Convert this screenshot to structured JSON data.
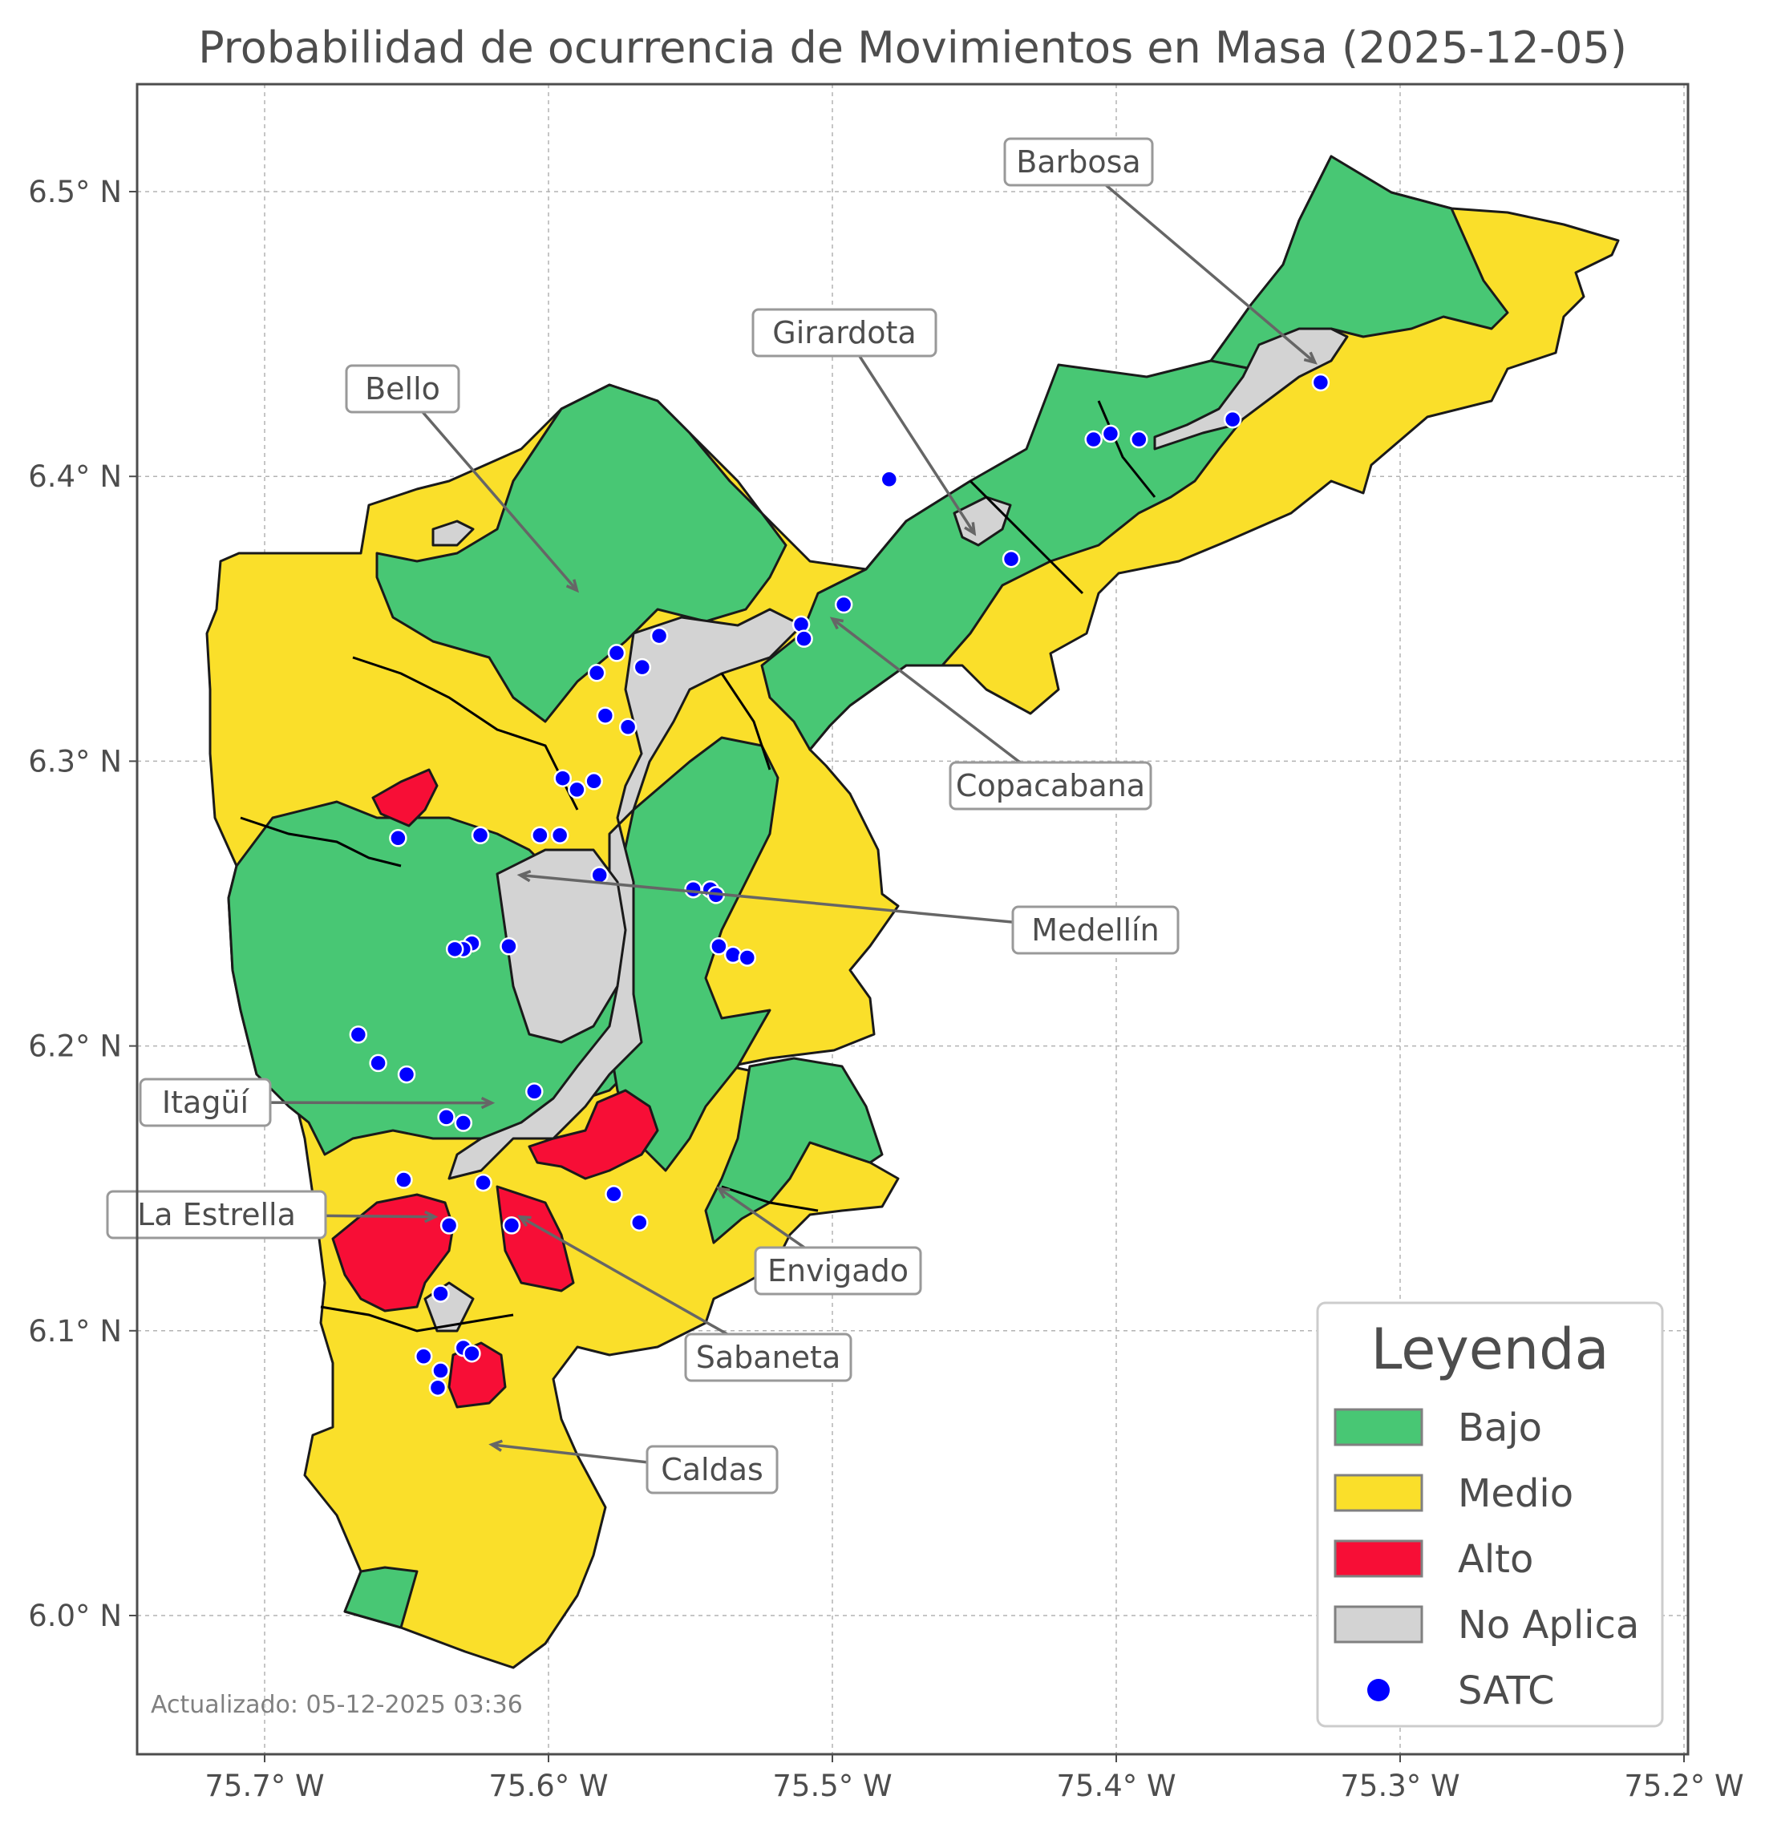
{
  "title": "Probabilidad de ocurrencia de Movimientos en Masa (2025-12-05)",
  "axes": {
    "lat_ticks": [
      "6.5° N",
      "6.4° N",
      "6.3° N",
      "6.2° N",
      "6.1° N",
      "6.0° N"
    ],
    "lon_ticks": [
      "75.7° W",
      "75.6° W",
      "75.5° W",
      "75.4° W",
      "75.3° W",
      "75.2° W"
    ],
    "grid": true
  },
  "municipalities": [
    {
      "name": "Barbosa",
      "lon": -75.33,
      "lat": 6.44
    },
    {
      "name": "Girardota",
      "lon": -75.45,
      "lat": 6.38
    },
    {
      "name": "Bello",
      "lon": -75.59,
      "lat": 6.36
    },
    {
      "name": "Copacabana",
      "lon": -75.5,
      "lat": 6.35
    },
    {
      "name": "Medellín",
      "lon": -75.61,
      "lat": 6.26
    },
    {
      "name": "Itagüí",
      "lon": -75.62,
      "lat": 6.18
    },
    {
      "name": "La Estrella",
      "lon": -75.64,
      "lat": 6.14
    },
    {
      "name": "Envigado",
      "lon": -75.54,
      "lat": 6.15
    },
    {
      "name": "Sabaneta",
      "lon": -75.61,
      "lat": 6.14
    },
    {
      "name": "Caldas",
      "lon": -75.62,
      "lat": 6.06
    }
  ],
  "legend": {
    "title": "Leyenda",
    "placement": "bottom-right",
    "items": [
      {
        "label": "Bajo",
        "color": "#48c774",
        "kind": "patch"
      },
      {
        "label": "Medio",
        "color": "#fadf2a",
        "kind": "patch"
      },
      {
        "label": "Alto",
        "color": "#f70e36",
        "kind": "patch"
      },
      {
        "label": "No Aplica",
        "color": "#d3d3d3",
        "kind": "patch"
      },
      {
        "label": "SATC",
        "color": "#0000ff",
        "kind": "point"
      }
    ]
  },
  "satc_stations": [
    {
      "lon": -75.328,
      "lat": 6.433
    },
    {
      "lon": -75.359,
      "lat": 6.42
    },
    {
      "lon": -75.392,
      "lat": 6.413
    },
    {
      "lon": -75.402,
      "lat": 6.415
    },
    {
      "lon": -75.408,
      "lat": 6.413
    },
    {
      "lon": -75.48,
      "lat": 6.399
    },
    {
      "lon": -75.437,
      "lat": 6.371
    },
    {
      "lon": -75.496,
      "lat": 6.355
    },
    {
      "lon": -75.511,
      "lat": 6.348
    },
    {
      "lon": -75.51,
      "lat": 6.343
    },
    {
      "lon": -75.561,
      "lat": 6.344
    },
    {
      "lon": -75.576,
      "lat": 6.338
    },
    {
      "lon": -75.567,
      "lat": 6.333
    },
    {
      "lon": -75.583,
      "lat": 6.331
    },
    {
      "lon": -75.58,
      "lat": 6.316
    },
    {
      "lon": -75.572,
      "lat": 6.312
    },
    {
      "lon": -75.595,
      "lat": 6.294
    },
    {
      "lon": -75.59,
      "lat": 6.29
    },
    {
      "lon": -75.584,
      "lat": 6.293
    },
    {
      "lon": -75.653,
      "lat": 6.273
    },
    {
      "lon": -75.624,
      "lat": 6.274
    },
    {
      "lon": -75.603,
      "lat": 6.274
    },
    {
      "lon": -75.596,
      "lat": 6.274
    },
    {
      "lon": -75.582,
      "lat": 6.26
    },
    {
      "lon": -75.549,
      "lat": 6.255
    },
    {
      "lon": -75.543,
      "lat": 6.255
    },
    {
      "lon": -75.541,
      "lat": 6.253
    },
    {
      "lon": -75.54,
      "lat": 6.235
    },
    {
      "lon": -75.535,
      "lat": 6.232
    },
    {
      "lon": -75.53,
      "lat": 6.231
    },
    {
      "lon": -75.627,
      "lat": 6.236
    },
    {
      "lon": -75.614,
      "lat": 6.235
    },
    {
      "lon": -75.63,
      "lat": 6.234
    },
    {
      "lon": -75.633,
      "lat": 6.234
    },
    {
      "lon": -75.667,
      "lat": 6.204
    },
    {
      "lon": -75.66,
      "lat": 6.194
    },
    {
      "lon": -75.65,
      "lat": 6.19
    },
    {
      "lon": -75.605,
      "lat": 6.184
    },
    {
      "lon": -75.636,
      "lat": 6.175
    },
    {
      "lon": -75.63,
      "lat": 6.173
    },
    {
      "lon": -75.651,
      "lat": 6.153
    },
    {
      "lon": -75.623,
      "lat": 6.152
    },
    {
      "lon": -75.577,
      "lat": 6.148
    },
    {
      "lon": -75.568,
      "lat": 6.138
    },
    {
      "lon": -75.613,
      "lat": 6.137
    },
    {
      "lon": -75.635,
      "lat": 6.137
    },
    {
      "lon": -75.638,
      "lat": 6.113
    },
    {
      "lon": -75.644,
      "lat": 6.091
    },
    {
      "lon": -75.63,
      "lat": 6.094
    },
    {
      "lon": -75.627,
      "lat": 6.092
    },
    {
      "lon": -75.638,
      "lat": 6.086
    },
    {
      "lon": -75.639,
      "lat": 6.08
    }
  ],
  "footnote": "Actualizado: 05-12-2025 03:36"
}
